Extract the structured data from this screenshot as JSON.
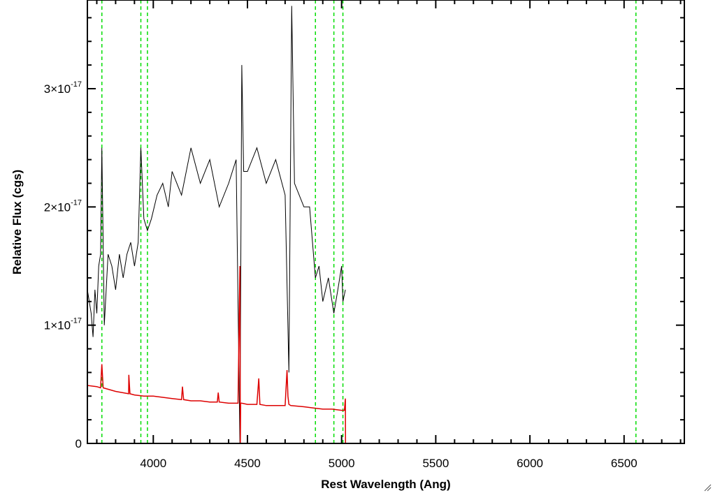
{
  "chart_data": {
    "type": "line",
    "title": "",
    "xlabel": "Rest Wavelength (Ang)",
    "ylabel": "Relative Flux (cgs)",
    "xlim": [
      3650,
      6820
    ],
    "ylim": [
      0,
      3.75e-17
    ],
    "x_ticks": [
      4000,
      4500,
      5000,
      5500,
      6000,
      6500
    ],
    "x_tick_labels": [
      "4000",
      "4500",
      "5000",
      "5500",
      "6000",
      "6500"
    ],
    "y_ticks": [
      {
        "value": 0,
        "mantissa": "0",
        "exponent": ""
      },
      {
        "value": 1e-17,
        "mantissa": "1×10",
        "exponent": "-17"
      },
      {
        "value": 2e-17,
        "mantissa": "2×10",
        "exponent": "-17"
      },
      {
        "value": 3e-17,
        "mantissa": "3×10",
        "exponent": "-17"
      }
    ],
    "vertical_lines": {
      "x": [
        3727,
        3934,
        3969,
        4861,
        4959,
        5007,
        6563
      ],
      "color": "#00dd00",
      "style": "dashed"
    },
    "series": [
      {
        "color": "#000000",
        "x": [
          3650,
          3660,
          3670,
          3680,
          3690,
          3700,
          3710,
          3720,
          3727,
          3740,
          3760,
          3780,
          3800,
          3820,
          3840,
          3860,
          3880,
          3900,
          3920,
          3934,
          3950,
          3969,
          3990,
          4020,
          4050,
          4080,
          4100,
          4150,
          4200,
          4250,
          4300,
          4350,
          4400,
          4440,
          4460,
          4470,
          4480,
          4500,
          4550,
          4600,
          4650,
          4700,
          4720,
          4735,
          4750,
          4800,
          4830,
          4861,
          4880,
          4900,
          4930,
          4959,
          4980,
          5000,
          5007,
          5020
        ],
        "y": [
          1.3e-17,
          1.2e-17,
          1.1e-17,
          9e-18,
          1.3e-17,
          1.1e-17,
          1.5e-17,
          1.6e-17,
          2.5e-17,
          1e-17,
          1.6e-17,
          1.5e-17,
          1.3e-17,
          1.6e-17,
          1.4e-17,
          1.6e-17,
          1.7e-17,
          1.5e-17,
          1.7e-17,
          2.5e-17,
          1.9e-17,
          1.8e-17,
          1.9e-17,
          2.1e-17,
          2.2e-17,
          2e-17,
          2.3e-17,
          2.1e-17,
          2.5e-17,
          2.2e-17,
          2.4e-17,
          2e-17,
          2.2e-17,
          2.4e-17,
          0.0,
          3.2e-17,
          2.3e-17,
          2.3e-17,
          2.5e-17,
          2.2e-17,
          2.4e-17,
          2.1e-17,
          6e-18,
          3.7e-17,
          2.2e-17,
          2e-17,
          2e-17,
          1.4e-17,
          1.5e-17,
          1.2e-17,
          1.4e-17,
          1.1e-17,
          1.3e-17,
          1.5e-17,
          1.2e-17,
          1.3e-17
        ]
      },
      {
        "color": "#dd0000",
        "x": [
          3650,
          3700,
          3720,
          3727,
          3734,
          3800,
          3869,
          3870,
          3876,
          3900,
          3950,
          4000,
          4050,
          4100,
          4150,
          4155,
          4161,
          4200,
          4250,
          4300,
          4340,
          4345,
          4350,
          4400,
          4450,
          4460,
          4462,
          4464,
          4470,
          4500,
          4550,
          4560,
          4566,
          4600,
          4650,
          4700,
          4710,
          4715,
          4720,
          4730,
          4800,
          4850,
          4900,
          4950,
          5000,
          5015,
          5020,
          5021,
          5100,
          5500,
          6000,
          6500,
          6820
        ],
        "y": [
          4.9e-18,
          4.8e-18,
          4.7e-18,
          6.7e-18,
          4.7e-18,
          4.4e-18,
          4.2e-18,
          5.8e-18,
          4.2e-18,
          4.1e-18,
          4e-18,
          4e-18,
          3.9e-18,
          3.8e-18,
          3.7e-18,
          4.8e-18,
          3.7e-18,
          3.6e-18,
          3.6e-18,
          3.5e-18,
          3.5e-18,
          4.3e-18,
          3.5e-18,
          3.4e-18,
          3.4e-18,
          1.5e-17,
          0.0,
          3.4e-18,
          3.4e-18,
          3.3e-18,
          3.3e-18,
          5.5e-18,
          3.3e-18,
          3.2e-18,
          3.2e-18,
          3.2e-18,
          6.2e-18,
          4e-18,
          3.3e-18,
          3.2e-18,
          3.1e-18,
          3e-18,
          2.9e-18,
          2.9e-18,
          2.8e-18,
          2.8e-18,
          3.8e-18,
          0.0,
          0.0,
          0.0,
          0.0,
          0.0,
          0.0
        ]
      }
    ],
    "grid": false,
    "legend": "none"
  }
}
